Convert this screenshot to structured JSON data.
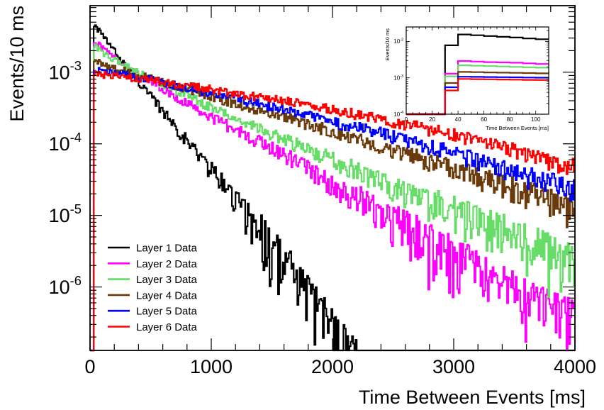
{
  "chart_data": [
    {
      "type": "line",
      "step": true,
      "xlabel": "Time Between Events [ms]",
      "ylabel": "Events/10 ms",
      "xlim": [
        0,
        4000
      ],
      "ylim": [
        1.3e-07,
        0.0085
      ],
      "yscale": "log",
      "grid": false,
      "legend_position": "bottom-left",
      "x_ticks": [
        {
          "value": 0,
          "label": "0"
        },
        {
          "value": 1000,
          "label": "1000"
        },
        {
          "value": 2000,
          "label": "2000"
        },
        {
          "value": 3000,
          "label": "3000"
        },
        {
          "value": 4000,
          "label": "4000"
        }
      ],
      "y_ticks": [
        {
          "value": 1e-06,
          "base": "10",
          "exp": "-6"
        },
        {
          "value": 1e-05,
          "base": "10",
          "exp": "-5"
        },
        {
          "value": 0.0001,
          "base": "10",
          "exp": "-4"
        },
        {
          "value": 0.001,
          "base": "10",
          "exp": "-3"
        }
      ],
      "series": [
        {
          "name": "Layer 1 Data",
          "color": "#000000",
          "x": [
            30,
            100,
            200,
            300,
            400,
            500,
            600,
            700,
            800,
            900,
            1000,
            1100,
            1200,
            1300,
            1400,
            1500,
            1600,
            1700,
            1800,
            1900,
            2000
          ],
          "values": [
            0.0048,
            0.0033,
            0.002,
            0.0012,
            0.00075,
            0.00046,
            0.00029,
            0.00018,
            0.00011,
            7e-05,
            4.4e-05,
            2.7e-05,
            1.7e-05,
            1.05e-05,
            6.5e-06,
            4e-06,
            2.4e-06,
            1.4e-06,
            8e-07,
            5e-07,
            3e-07
          ]
        },
        {
          "name": "Layer 2 Data",
          "color": "#ff00ff",
          "x": [
            30,
            100,
            200,
            300,
            500,
            800,
            1000,
            1200,
            1500,
            1800,
            2000,
            2300,
            2500,
            2700,
            2900,
            3100,
            3300,
            3500,
            3700,
            4000
          ],
          "values": [
            0.0028,
            0.0022,
            0.0016,
            0.0012,
            0.00075,
            0.00037,
            0.00024,
            0.00016,
            9e-05,
            4.5e-05,
            2.9e-05,
            1.5e-05,
            9.5e-06,
            5.5e-06,
            3.7e-06,
            2.3e-06,
            1.4e-06,
            9e-07,
            6e-07,
            4e-07
          ]
        },
        {
          "name": "Layer 3 Data",
          "color": "#66dd66",
          "x": [
            30,
            100,
            200,
            400,
            600,
            800,
            1000,
            1300,
            1600,
            2000,
            2300,
            2600,
            3000,
            3300,
            3600,
            4000
          ],
          "values": [
            0.0024,
            0.0019,
            0.0015,
            0.001,
            0.00068,
            0.00048,
            0.00032,
            0.00019,
            0.000115,
            6e-05,
            3.6e-05,
            2.2e-05,
            1.2e-05,
            7.2e-06,
            4.5e-06,
            2.4e-06
          ]
        },
        {
          "name": "Layer 4 Data",
          "color": "#6b3a0a",
          "x": [
            30,
            100,
            200,
            400,
            600,
            800,
            1000,
            1300,
            1600,
            2000,
            2300,
            2600,
            3000,
            3300,
            3600,
            4000
          ],
          "values": [
            0.0015,
            0.0013,
            0.00115,
            0.00092,
            0.00073,
            0.00058,
            0.00046,
            0.00033,
            0.00024,
            0.00015,
            0.000105,
            7.4e-05,
            4.6e-05,
            3.1e-05,
            2.1e-05,
            1.2e-05
          ]
        },
        {
          "name": "Layer 5 Data",
          "color": "#0000ff",
          "x": [
            30,
            100,
            300,
            500,
            700,
            1000,
            1300,
            1600,
            2000,
            2300,
            2600,
            3000,
            3300,
            3600,
            4000
          ],
          "values": [
            0.0011,
            0.00103,
            0.00092,
            0.00079,
            0.00066,
            0.00051,
            0.00039,
            0.0003,
            0.000205,
            0.000155,
            0.000115,
            7.5e-05,
            5.2e-05,
            3.6e-05,
            2.3e-05
          ]
        },
        {
          "name": "Layer 6 Data",
          "color": "#ff0000",
          "x": [
            30,
            100,
            300,
            500,
            700,
            1000,
            1300,
            1600,
            2000,
            2300,
            2600,
            3000,
            3300,
            3600,
            4000
          ],
          "values": [
            0.00095,
            0.00092,
            0.00085,
            0.00077,
            0.00069,
            0.00058,
            0.00048,
            0.0004,
            0.0003,
            0.00024,
            0.00019,
            0.000135,
            0.0001,
            7.3e-05,
            4.7e-05
          ]
        }
      ]
    },
    {
      "type": "line",
      "step": true,
      "role": "inset",
      "xlabel": "Time Between Events [ms]",
      "ylabel": "Events/10 ms",
      "xlim": [
        0,
        110
      ],
      "ylim": [
        0.0001,
        0.025
      ],
      "yscale": "log",
      "x_ticks": [
        {
          "value": 0,
          "label": "0"
        },
        {
          "value": 20,
          "label": "20"
        },
        {
          "value": 40,
          "label": "40"
        },
        {
          "value": 60,
          "label": "60"
        },
        {
          "value": 80,
          "label": "80"
        },
        {
          "value": 100,
          "label": "100"
        }
      ],
      "y_ticks": [
        {
          "value": 0.0001,
          "base": "10",
          "exp": "-4"
        },
        {
          "value": 0.001,
          "base": "10",
          "exp": "-3"
        },
        {
          "value": 0.01,
          "base": "10",
          "exp": "-2"
        }
      ],
      "bin_edges": [
        0,
        10,
        20,
        30,
        40,
        50,
        60,
        70,
        80,
        90,
        100,
        110
      ],
      "series": [
        {
          "name": "Layer 1 Data",
          "color": "#000000",
          "values": [
            0.0001,
            0.0001,
            0.0001,
            0.0078,
            0.0155,
            0.0148,
            0.0141,
            0.0134,
            0.0128,
            0.0121,
            0.0115
          ]
        },
        {
          "name": "Layer 2 Data",
          "color": "#ff00ff",
          "values": [
            0.0001,
            0.0001,
            0.0001,
            0.0013,
            0.0029,
            0.0028,
            0.0027,
            0.00265,
            0.0026,
            0.0025,
            0.0024
          ]
        },
        {
          "name": "Layer 3 Data",
          "color": "#66dd66",
          "values": [
            0.0001,
            0.0001,
            0.0001,
            0.0011,
            0.0022,
            0.00215,
            0.0021,
            0.00205,
            0.002,
            0.00195,
            0.0019
          ]
        },
        {
          "name": "Layer 4 Data",
          "color": "#6b3a0a",
          "values": [
            0.0001,
            0.0001,
            0.0001,
            0.00072,
            0.00145,
            0.00143,
            0.00141,
            0.00139,
            0.00137,
            0.00135,
            0.00133
          ]
        },
        {
          "name": "Layer 5 Data",
          "color": "#0000ff",
          "values": [
            0.0001,
            0.0001,
            0.0001,
            0.00055,
            0.00107,
            0.00106,
            0.00105,
            0.00104,
            0.00103,
            0.00102,
            0.00101
          ]
        },
        {
          "name": "Layer 6 Data",
          "color": "#ff0000",
          "values": [
            0.0001,
            0.0001,
            0.0001,
            0.00045,
            0.00093,
            0.00092,
            0.00091,
            0.0009,
            0.00089,
            0.00088,
            0.00087
          ]
        }
      ]
    }
  ]
}
